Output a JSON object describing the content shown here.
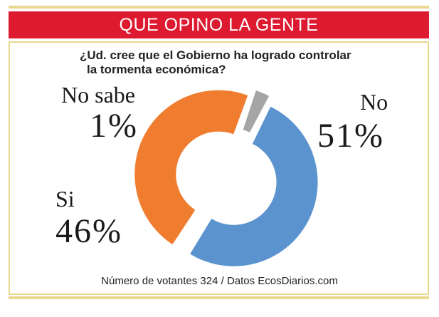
{
  "header": {
    "title": "QUE OPINO LA GENTE"
  },
  "question": {
    "line1": "¿Ud. cree que el Gobierno ha logrado controlar",
    "line2": "la tormenta económica?"
  },
  "footer": {
    "text": "Número de votantes 324 / Datos EcosDiarios.com"
  },
  "colors": {
    "header_red": "#dd1a30",
    "gold_border": "#e9d98f"
  },
  "chart_data": {
    "type": "pie",
    "style": "donut",
    "title": "",
    "slices": [
      {
        "label": "No",
        "value": 51,
        "value_label": "51%",
        "color": "#5b93cf"
      },
      {
        "label": "Si",
        "value": 46,
        "value_label": "46%",
        "color": "#f07c2f"
      },
      {
        "label": "No sabe",
        "value": 1,
        "value_label": "1%",
        "color": "#a5a5a5"
      }
    ]
  }
}
